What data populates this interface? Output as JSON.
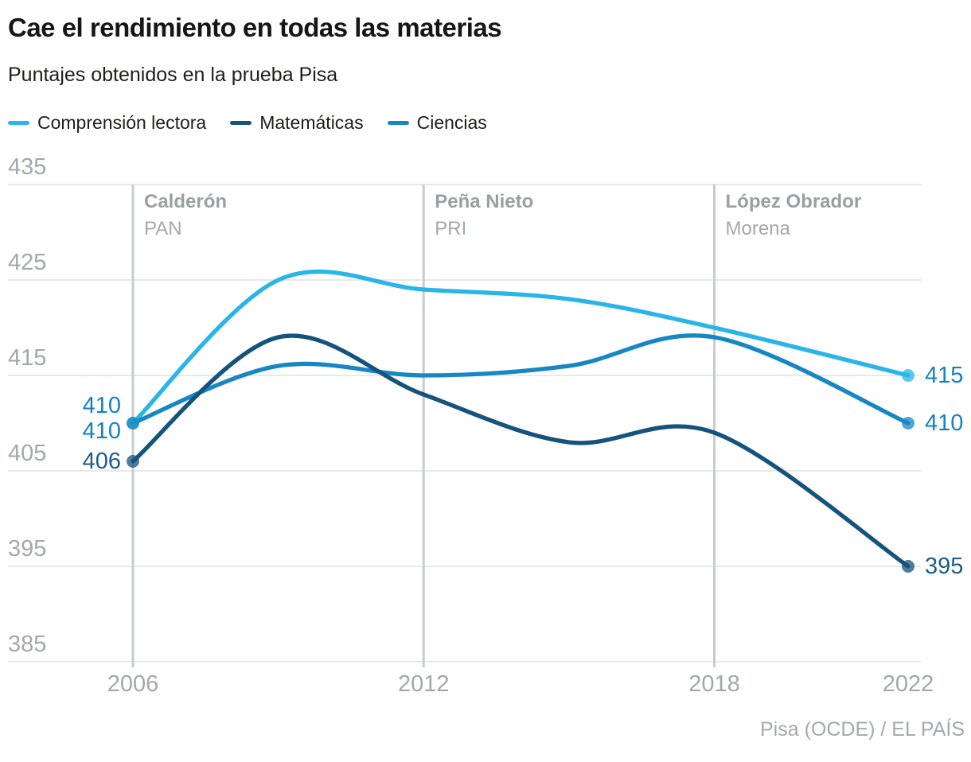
{
  "header": {
    "title": "Cae el rendimiento en todas las materias",
    "subtitle": "Puntajes obtenidos en la prueba Pisa"
  },
  "legend": [
    {
      "key": "lectora",
      "label": "Comprensión lectora",
      "color": "#29b5e8"
    },
    {
      "key": "matematicas",
      "label": "Matemáticas",
      "color": "#15537c"
    },
    {
      "key": "ciencias",
      "label": "Ciencias",
      "color": "#1787c3"
    }
  ],
  "colors": {
    "grid": "#e8e9e9",
    "era_line": "#c8cccd",
    "tick_text": "#a3a8aa",
    "era_name_text": "#97a1a1",
    "era_party_text": "#a1aaaa",
    "title_text": "#161616",
    "body_text": "#1e1e1c",
    "source_text": "#a4a9ab",
    "label_tones": {
      "blue": "#1282c4",
      "navy": "#1d5d8d"
    }
  },
  "chart_data": {
    "type": "line",
    "title": "Cae el rendimiento en todas las materias",
    "subtitle": "Puntajes obtenidos en la prueba Pisa",
    "x": [
      2006,
      2009,
      2012,
      2015,
      2018,
      2022
    ],
    "series": [
      {
        "key": "lectora",
        "name": "Comprensión lectora",
        "color": "#29b5e8",
        "values": [
          410,
          425,
          424,
          423,
          420,
          415
        ]
      },
      {
        "key": "matematicas",
        "name": "Matemáticas",
        "color": "#15537c",
        "values": [
          406,
          419,
          413,
          408,
          409,
          395
        ]
      },
      {
        "key": "ciencias",
        "name": "Ciencias",
        "color": "#1787c3",
        "values": [
          410,
          416,
          415,
          416,
          419,
          410
        ]
      }
    ],
    "ylim": [
      385,
      435
    ],
    "grid": "horizontal",
    "legend_position": "top",
    "axes": {
      "yticks": [
        435,
        425,
        415,
        405,
        395,
        385
      ],
      "xticks": [
        2006,
        2012,
        2018,
        2022
      ]
    },
    "eras": [
      {
        "year": 2006,
        "president": "Calderón",
        "party": "PAN"
      },
      {
        "year": 2012,
        "president": "Peña Nieto",
        "party": "PRI"
      },
      {
        "year": 2018,
        "president": "López Obrador",
        "party": "Morena"
      }
    ],
    "value_labels": {
      "start": [
        {
          "text": "410",
          "tone": "blue",
          "value": 410,
          "offset": -22
        },
        {
          "text": "410",
          "tone": "blue",
          "value": 410,
          "offset": 10
        },
        {
          "text": "406",
          "tone": "navy",
          "value": 406,
          "offset": 0
        }
      ],
      "end": [
        {
          "text": "415",
          "tone": "blue",
          "value": 415
        },
        {
          "text": "410",
          "tone": "blue",
          "value": 410
        },
        {
          "text": "395",
          "tone": "navy",
          "value": 395
        }
      ]
    }
  },
  "source": "Pisa (OCDE) / EL PAÍS"
}
